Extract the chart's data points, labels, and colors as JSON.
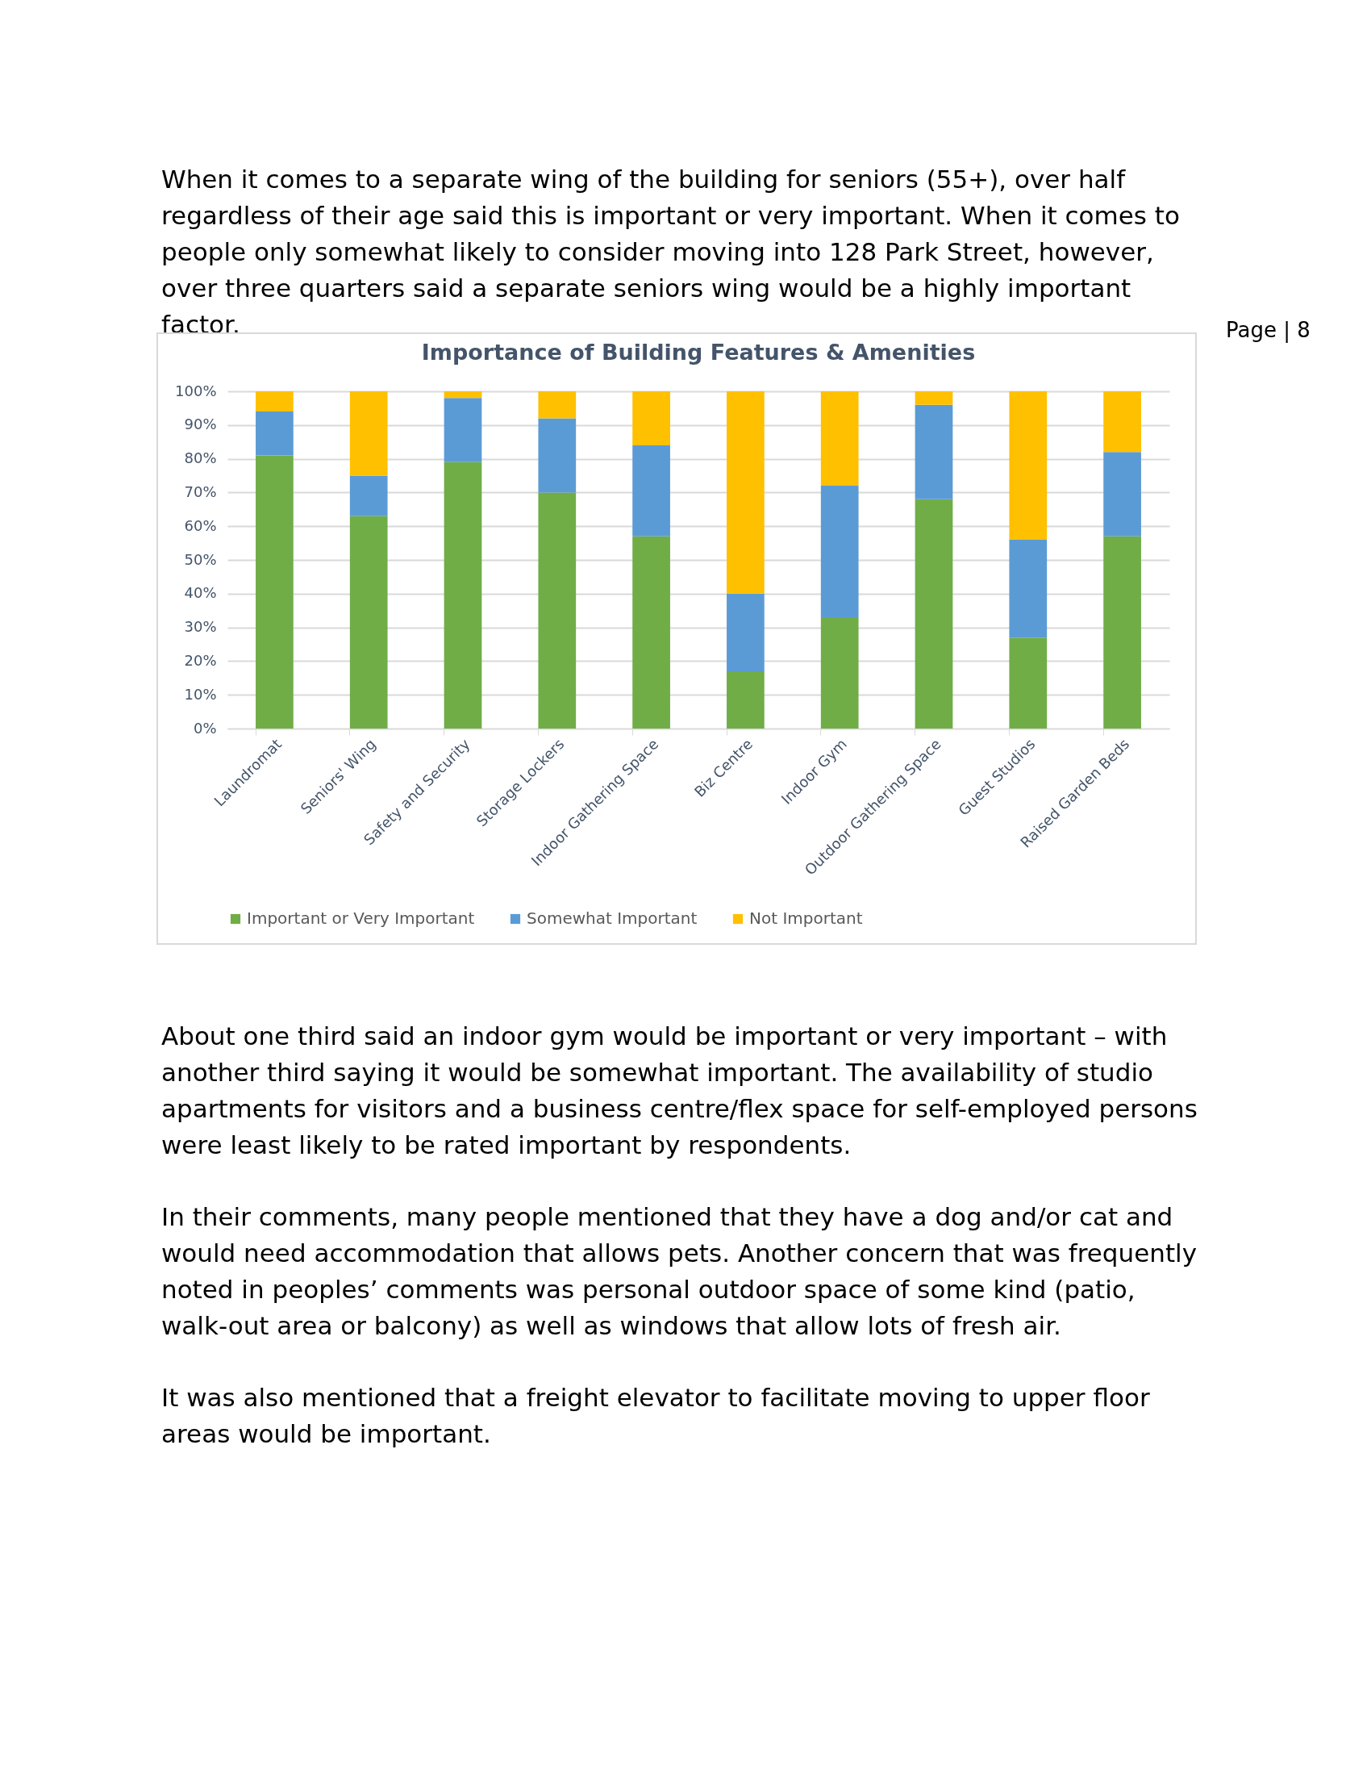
{
  "chart_data": {
    "type": "bar",
    "title": "Importance of Building Features & Amenities",
    "stacked": true,
    "categories": [
      "Laundromat",
      "Seniors' Wing",
      "Safety and Security",
      "Storage Lockers",
      "Indoor Gathering Space",
      "Biz Centre",
      "Indoor Gym",
      "Outdoor Gathering Space",
      "Guest Studios",
      "Raised Garden Beds"
    ],
    "series": [
      {
        "name": "Important or Very Important",
        "color": "#70ad47",
        "values": [
          81,
          63,
          79,
          70,
          57,
          17,
          33,
          68,
          27,
          57
        ]
      },
      {
        "name": "Somewhat Important",
        "color": "#5b9bd5",
        "values": [
          13,
          12,
          19,
          22,
          27,
          23,
          39,
          28,
          29,
          25
        ]
      },
      {
        "name": "Not Important",
        "color": "#ffc000",
        "values": [
          6,
          25,
          2,
          8,
          16,
          60,
          28,
          4,
          44,
          18
        ]
      }
    ],
    "ylim": [
      0,
      100
    ],
    "yticks": [
      {
        "value": 0,
        "label": "0%"
      },
      {
        "value": 10,
        "label": "10%"
      },
      {
        "value": 20,
        "label": "20%"
      },
      {
        "value": 30,
        "label": "30%"
      },
      {
        "value": 40,
        "label": "40%"
      },
      {
        "value": 50,
        "label": "50%"
      },
      {
        "value": 60,
        "label": "60%"
      },
      {
        "value": 70,
        "label": "70%"
      },
      {
        "value": 80,
        "label": "80%"
      },
      {
        "value": 90,
        "label": "90%"
      },
      {
        "value": 100,
        "label": "100%"
      }
    ],
    "grid": "y",
    "legend": "bottom",
    "annotations": [
      "When it comes to a separate wing of the building for seniors (55+), over half regardless of their age said this is important or very important.   When it comes to people only somewhat likely to consider moving into 128 Park Street, however, over three quarters said a separate seniors wing would be a highly important factor.",
      "Page | 8",
      "About one third said an indoor gym would be important or very important – with another third saying it would be somewhat important.  The availability of studio apartments for visitors and a business centre/flex space for self-employed persons were least likely to be rated important by respondents.",
      "In their comments, many people mentioned that they have a dog and/or cat and would need accommodation that allows pets.  Another concern that was frequently noted in peoples’ comments was personal outdoor space of some kind (patio, walk-out area or balcony) as well as windows that allow lots of fresh air.",
      "It was also mentioned that a freight elevator to facilitate moving to upper floor areas would be important."
    ]
  }
}
